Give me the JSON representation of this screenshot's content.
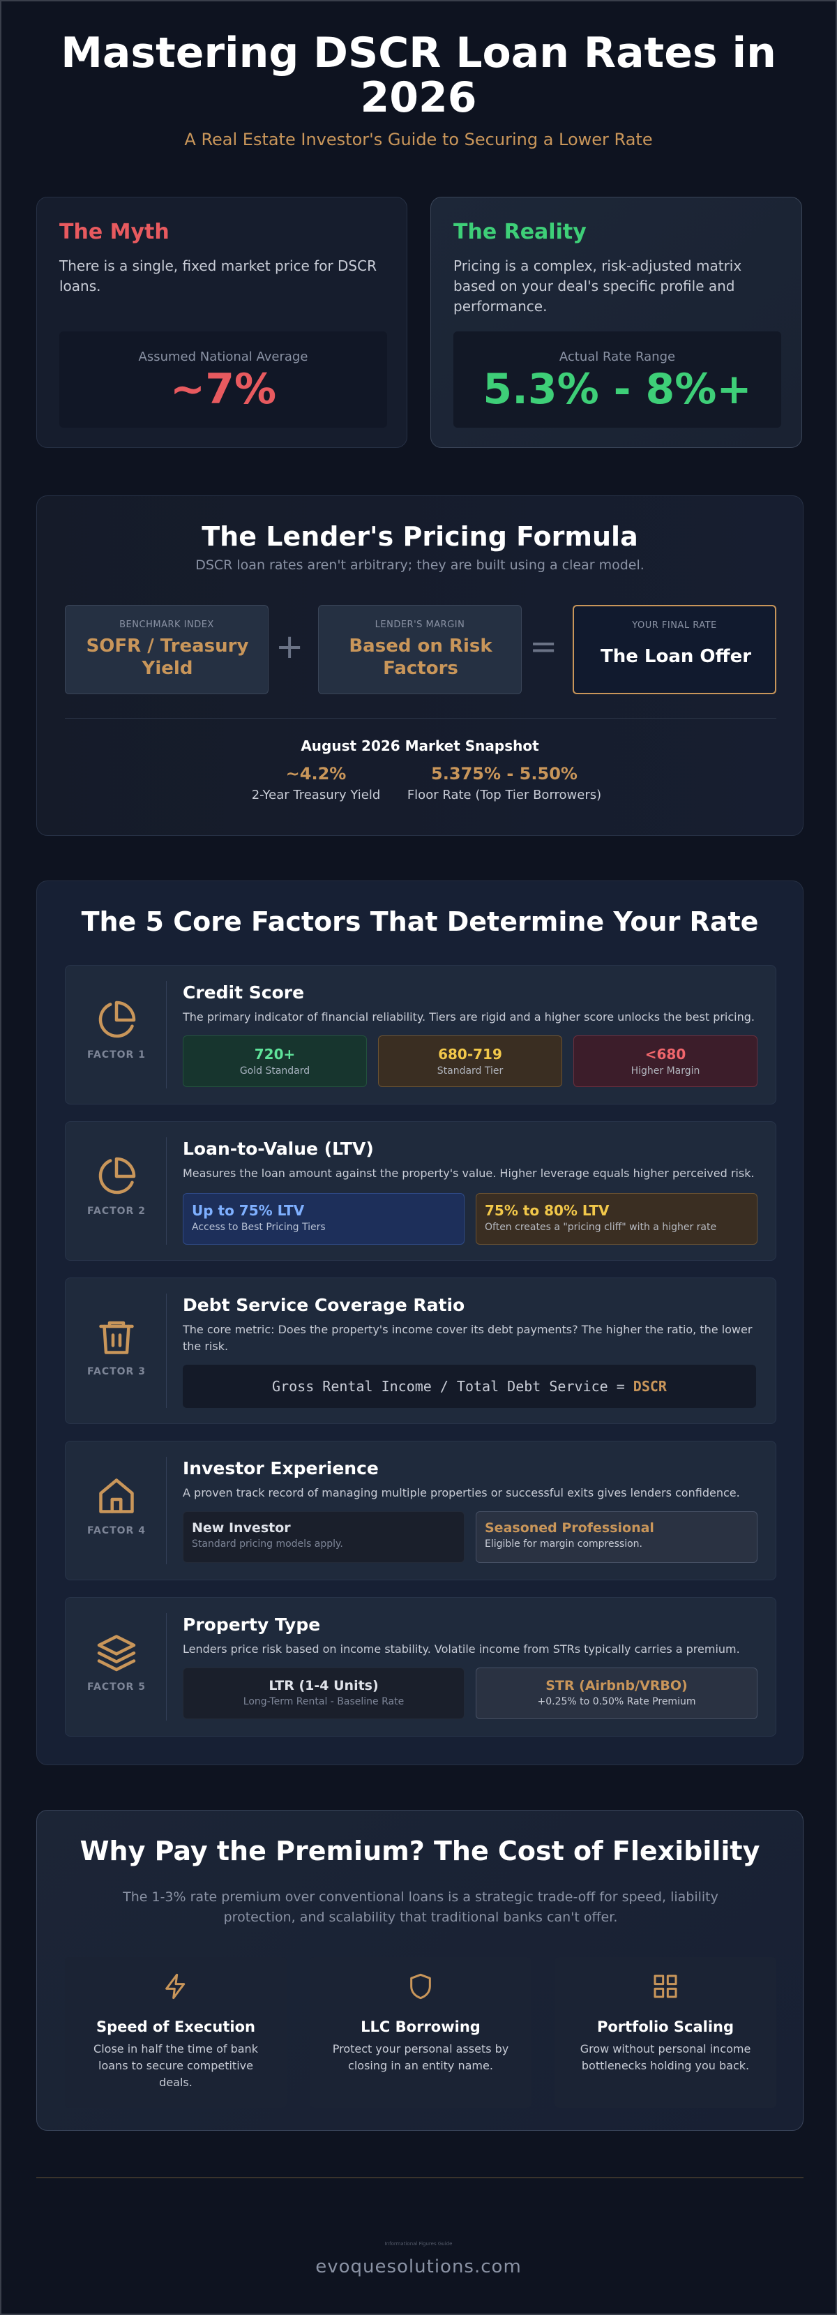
{
  "header": {
    "title": "Mastering DSCR Loan Rates in 2026",
    "subtitle": "A Real Estate Investor's Guide to Securing a Lower Rate"
  },
  "myth": {
    "heading": "The Myth",
    "body": "There is a single, fixed market price for DSCR loans.",
    "stat_label": "Assumed National Average",
    "stat_value": "~7%"
  },
  "reality": {
    "heading": "The Reality",
    "body": "Pricing is a complex, risk-adjusted matrix based on your deal's specific profile and performance.",
    "stat_label": "Actual Rate Range",
    "stat_value": "5.3% - 8%+"
  },
  "formula": {
    "title": "The Lender's Pricing Formula",
    "subtitle": "DSCR loan rates aren't arbitrary; they are built using a clear model.",
    "benchmark_label": "BENCHMARK INDEX",
    "benchmark_value": "SOFR / Treasury Yield",
    "plus": "+",
    "margin_label": "LENDER'S MARGIN",
    "margin_value": "Based on Risk Factors",
    "equals": "=",
    "final_label": "YOUR FINAL RATE",
    "final_value": "The Loan Offer",
    "snapshot_title": "August 2026 Market Snapshot",
    "snapshot": [
      {
        "value": "~4.2%",
        "label": "2-Year Treasury Yield"
      },
      {
        "value": "5.375% - 5.50%",
        "label": "Floor Rate (Top Tier Borrowers)"
      }
    ]
  },
  "factors": {
    "title": "The 5 Core Factors That Determine Your Rate",
    "items": [
      {
        "label": "FACTOR 1",
        "icon": "pie-chart-icon",
        "title": "Credit Score",
        "desc": "The primary indicator of financial reliability. Tiers are rigid and a higher score unlocks the best pricing.",
        "tiers": [
          {
            "t1": "720+",
            "t2": "Gold Standard"
          },
          {
            "t1": "680-719",
            "t2": "Standard Tier"
          },
          {
            "t1": "<680",
            "t2": "Higher Margin"
          }
        ]
      },
      {
        "label": "FACTOR 2",
        "icon": "pie-chart-icon",
        "title": "Loan-to-Value (LTV)",
        "desc": "Measures the loan amount against the property's value. Higher leverage equals higher perceived risk.",
        "tiers": [
          {
            "t1": "Up to 75% LTV",
            "t2": "Access to Best Pricing Tiers"
          },
          {
            "t1": "75% to 80% LTV",
            "t2": "Often creates a \"pricing cliff\" with a higher rate"
          }
        ]
      },
      {
        "label": "FACTOR 3",
        "icon": "trash-icon",
        "title": "Debt Service Coverage Ratio",
        "desc": "The core metric: Does the property's income cover its debt payments? The higher the ratio, the lower the risk.",
        "formula_left": "Gross Rental Income / Total Debt Service = ",
        "formula_right": "DSCR"
      },
      {
        "label": "FACTOR 4",
        "icon": "home-icon",
        "title": "Investor Experience",
        "desc": "A proven track record of managing multiple properties or successful exits gives lenders confidence.",
        "tiers": [
          {
            "t1": "New Investor",
            "t2": "Standard pricing models apply."
          },
          {
            "t1": "Seasoned Professional",
            "t2": "Eligible for margin compression."
          }
        ]
      },
      {
        "label": "FACTOR 5",
        "icon": "layers-icon",
        "title": "Property Type",
        "desc": "Lenders price risk based on income stability. Volatile income from STRs typically carries a premium.",
        "tiers": [
          {
            "t1": "LTR (1-4 Units)",
            "t2": "Long-Term Rental - Baseline Rate"
          },
          {
            "t1": "STR (Airbnb/VRBO)",
            "t2": "+0.25% to 0.50% Rate Premium"
          }
        ]
      }
    ]
  },
  "why": {
    "title": "Why Pay the Premium? The Cost of Flexibility",
    "subtitle": "The 1-3% rate premium over conventional loans is a strategic trade-off for speed, liability protection, and scalability that traditional banks can't offer.",
    "cols": [
      {
        "icon": "lightning-icon",
        "heading": "Speed of Execution",
        "desc": "Close in half the time of bank loans to secure competitive deals."
      },
      {
        "icon": "shield-icon",
        "heading": "LLC Borrowing",
        "desc": "Protect your personal assets by closing in an entity name."
      },
      {
        "icon": "grid-icon",
        "heading": "Portfolio Scaling",
        "desc": "Grow without personal income bottlenecks holding you back."
      }
    ]
  },
  "footer": {
    "small": "Informational Figures Guide",
    "url": "evoquesolutions.com"
  },
  "colors": {
    "accent": "#c9965a",
    "myth": "#e85a5f",
    "reality": "#3ecf78"
  }
}
